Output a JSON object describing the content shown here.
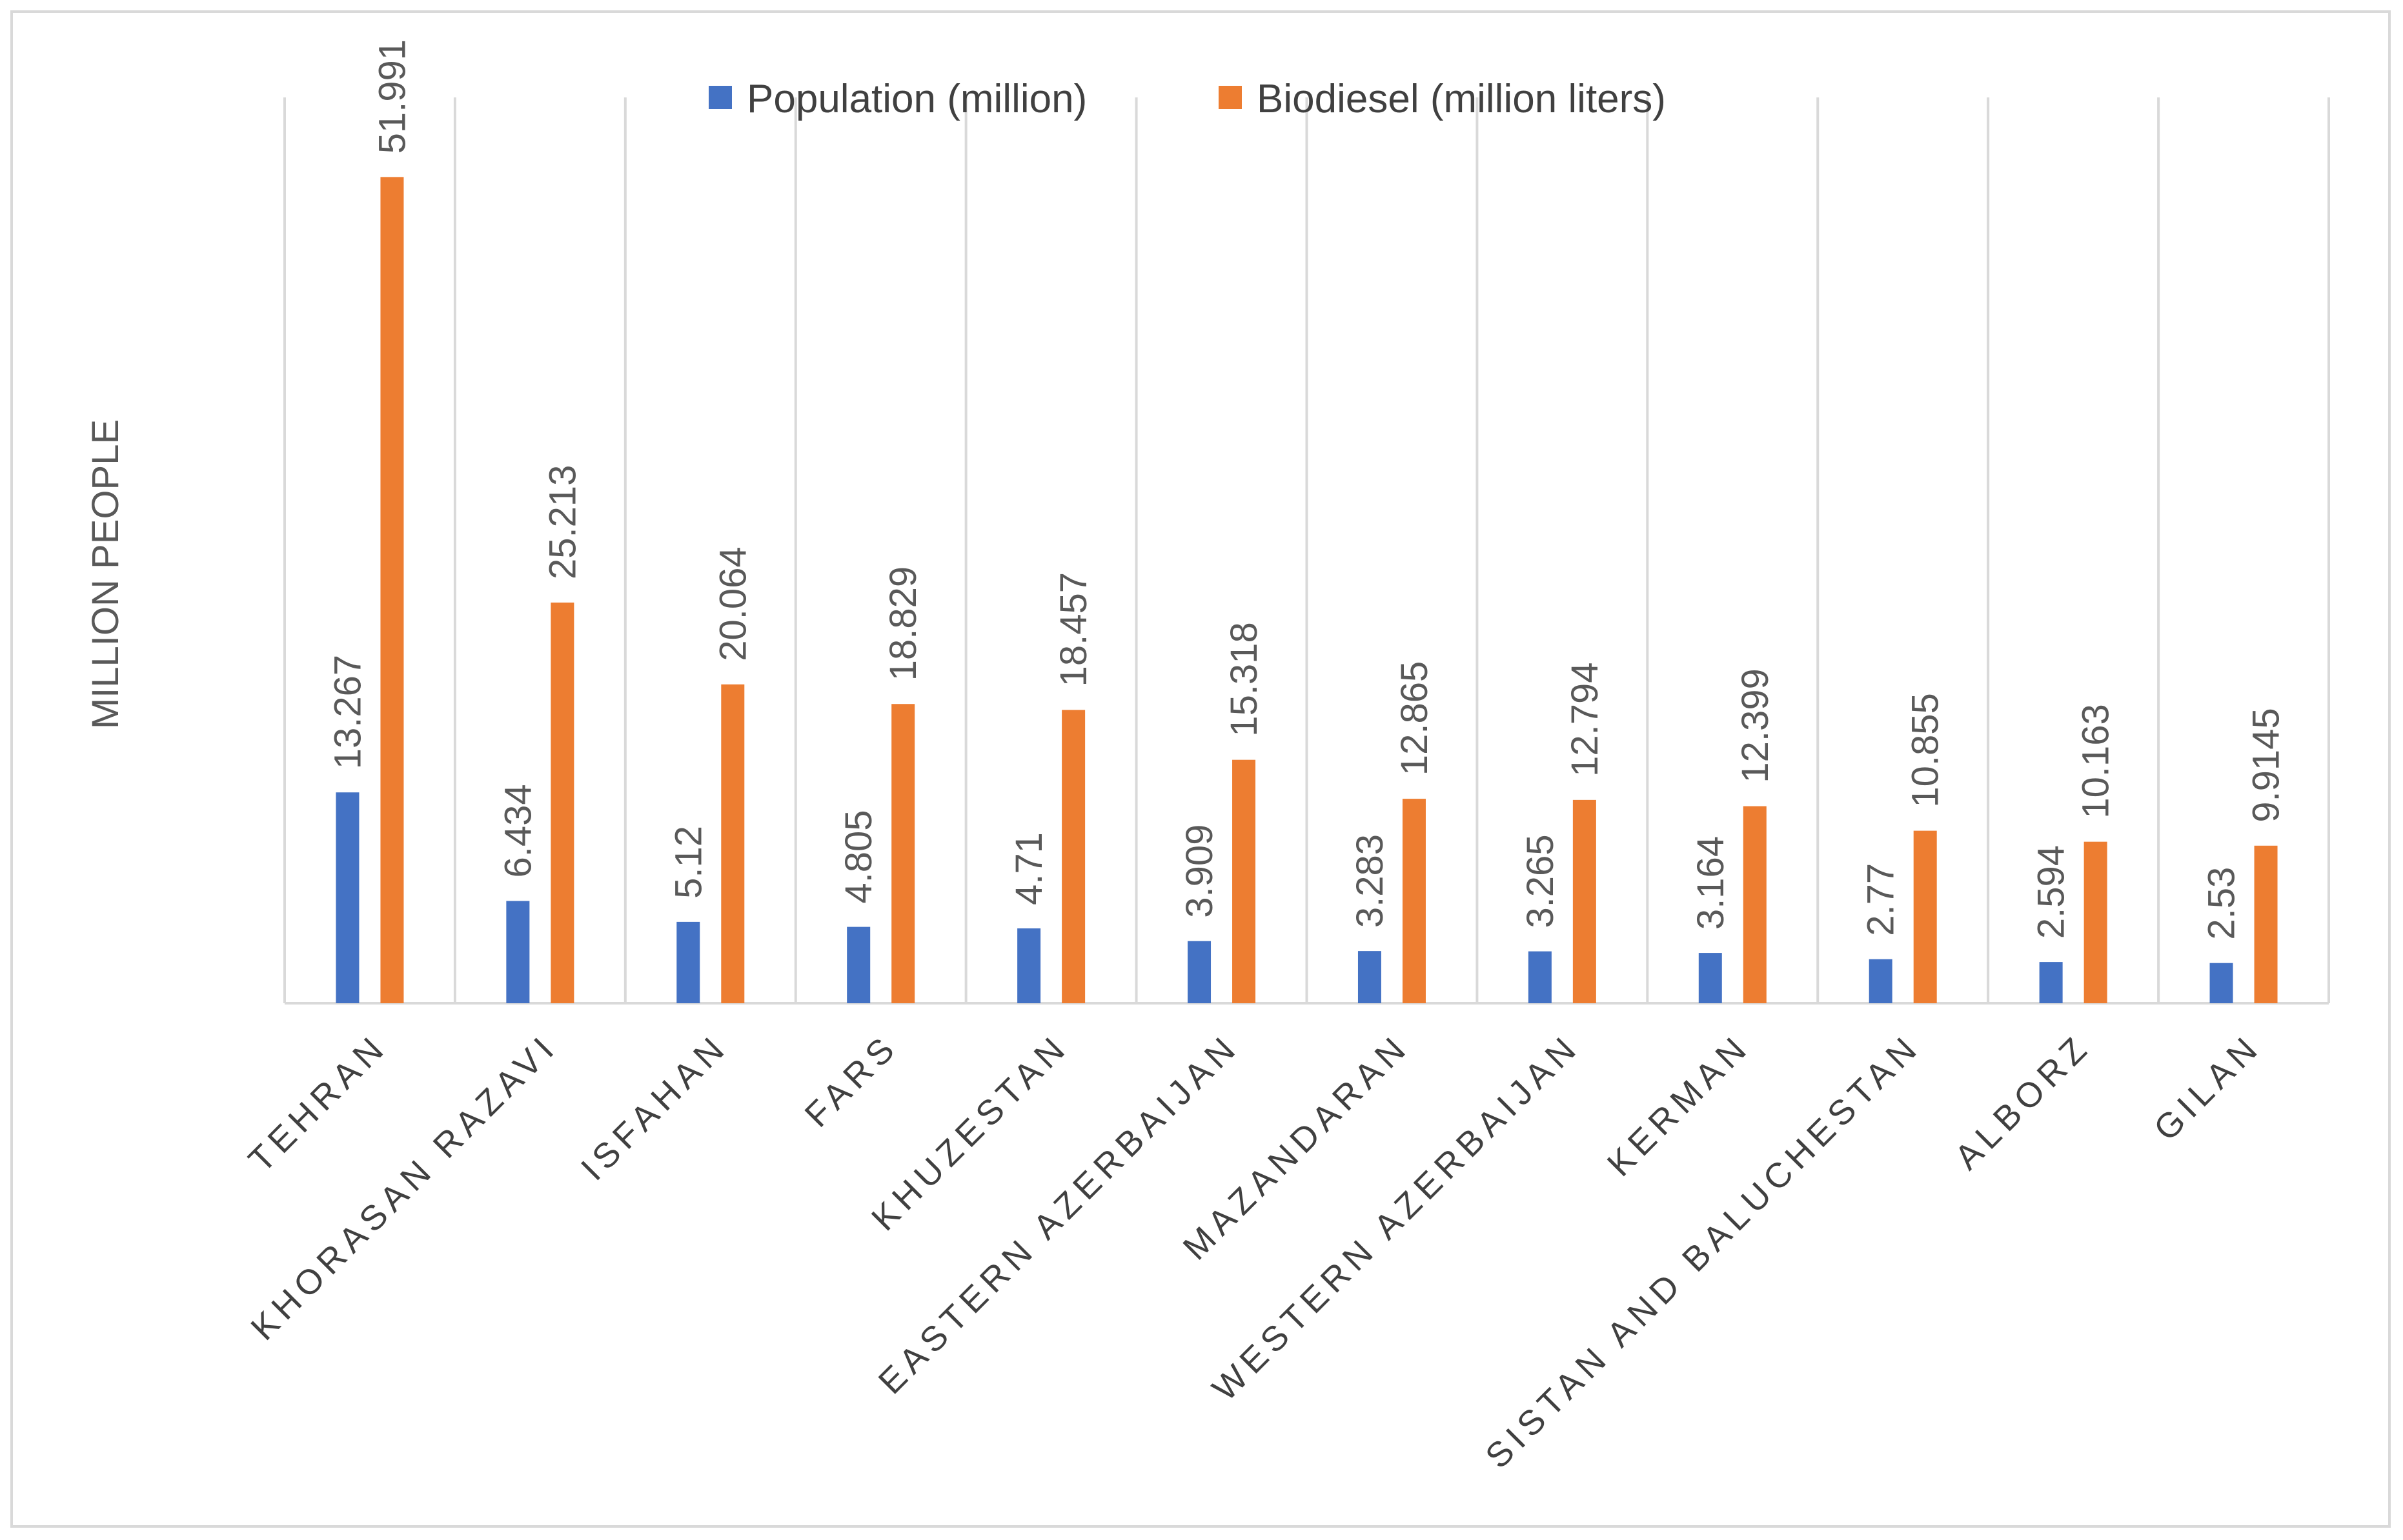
{
  "chart_data": {
    "type": "bar",
    "title": "",
    "xlabel": "",
    "ylabel": "MILLION PEOPLE",
    "ylim": [
      0,
      57
    ],
    "grid": "vertical category separators",
    "legend_position": "top",
    "categories": [
      "TEHRAN",
      "KHORASAN RAZAVI",
      "ISFAHAN",
      "FARS",
      "KHUZESTAN",
      "EASTERN AZERBAIJAN",
      "MAZANDARAN",
      "WESTERN AZERBAIJAN",
      "KERMAN",
      "SISTAN AND BALUCHESTAN",
      "ALBORZ",
      "GILAN"
    ],
    "series": [
      {
        "name": "Population (million)",
        "color": "#4472c4",
        "values": [
          13.267,
          6.434,
          5.12,
          4.805,
          4.71,
          3.909,
          3.283,
          3.265,
          3.164,
          2.77,
          2.594,
          2.53
        ],
        "labels": [
          "13.267",
          "6.434",
          "5.12",
          "4.805",
          "4.71",
          "3.909",
          "3.283",
          "3.265",
          "3.164",
          "2.77",
          "2.594",
          "2.53"
        ]
      },
      {
        "name": "Biodiesel (million liters)",
        "color": "#ed7d31",
        "values": [
          51.991,
          25.213,
          20.064,
          18.829,
          18.457,
          15.318,
          12.865,
          12.794,
          12.399,
          10.855,
          10.163,
          9.9145
        ],
        "labels": [
          "51.991",
          "25.213",
          "20.064",
          "18.829",
          "18.457",
          "15.318",
          "12.865",
          "12.794",
          "12.399",
          "10.855",
          "10.163",
          "9.9145"
        ]
      }
    ]
  }
}
